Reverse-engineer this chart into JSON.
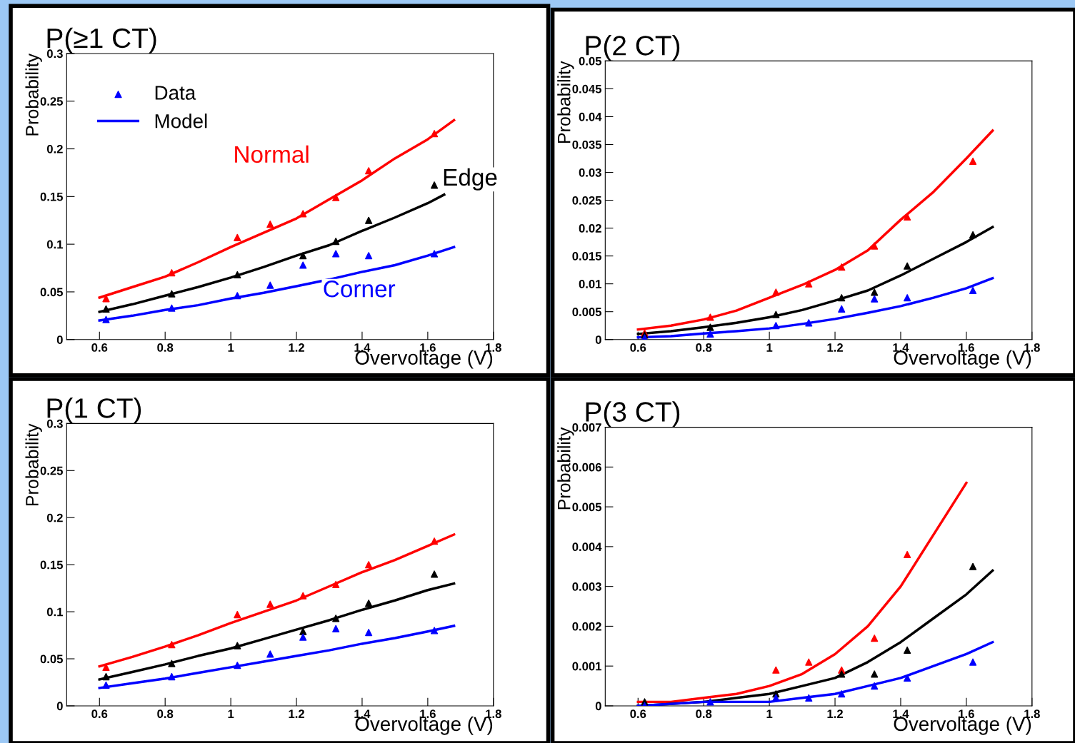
{
  "chart_data": [
    {
      "type": "line",
      "title": "P(≥1 CT)",
      "xlabel": "Overvoltage (V)",
      "ylabel": "Probability",
      "xlim": [
        0.5,
        1.8
      ],
      "xticks": [
        0.6,
        0.8,
        1,
        1.2,
        1.4,
        1.6,
        1.8
      ],
      "ylim": [
        0,
        0.3
      ],
      "yticks": [
        0,
        0.05,
        0.1,
        0.15,
        0.2,
        0.25,
        0.3
      ],
      "grid": false,
      "legend": "top left",
      "annotations": [
        "Normal",
        "Edge",
        "Corner"
      ],
      "series": [
        {
          "name": "Data",
          "type": "scatter",
          "marker": "triangle",
          "color": "#0000ff",
          "x": [
            0.62,
            0.82,
            1.02,
            1.12,
            1.22,
            1.32,
            1.42,
            1.62
          ],
          "values": [
            0.021,
            0.033,
            0.046,
            0.057,
            0.078,
            0.09,
            0.088,
            0.09
          ]
        },
        {
          "name": "Model",
          "type": "line",
          "line_style": "solid",
          "color": "#0000ff",
          "x": [
            0.6,
            0.7,
            0.8,
            0.9,
            1.0,
            1.1,
            1.2,
            1.3,
            1.4,
            1.5,
            1.6,
            1.68
          ],
          "values": [
            0.02,
            0.025,
            0.031,
            0.036,
            0.043,
            0.049,
            0.056,
            0.063,
            0.071,
            0.078,
            0.088,
            0.097
          ]
        },
        {
          "type": "scatter",
          "marker": "triangle",
          "color": "#ff0000",
          "x": [
            0.62,
            0.82,
            1.02,
            1.12,
            1.22,
            1.32,
            1.42,
            1.62
          ],
          "values": [
            0.043,
            0.07,
            0.107,
            0.121,
            0.132,
            0.149,
            0.177,
            0.216
          ]
        },
        {
          "type": "scatter",
          "marker": "triangle",
          "color": "#000000",
          "x": [
            0.62,
            0.82,
            1.02,
            1.12,
            1.22,
            1.32,
            1.42,
            1.62
          ],
          "values": [
            0.032,
            0.048,
            0.068,
            null,
            0.088,
            0.103,
            0.125,
            0.162
          ]
        },
        {
          "type": "line",
          "line_style": "solid",
          "color": "#ff0000",
          "x": [
            0.6,
            0.7,
            0.8,
            0.9,
            1.0,
            1.1,
            1.2,
            1.3,
            1.4,
            1.5,
            1.6,
            1.68
          ],
          "values": [
            0.044,
            0.055,
            0.066,
            0.081,
            0.097,
            0.112,
            0.127,
            0.147,
            0.167,
            0.19,
            0.21,
            0.23
          ]
        },
        {
          "type": "line",
          "line_style": "solid",
          "color": "#000000",
          "x": [
            0.6,
            0.7,
            0.8,
            0.9,
            1.0,
            1.1,
            1.2,
            1.3,
            1.4,
            1.5,
            1.6,
            1.65
          ],
          "values": [
            0.029,
            0.037,
            0.046,
            0.055,
            0.065,
            0.076,
            0.088,
            0.099,
            0.114,
            0.128,
            0.143,
            0.152
          ]
        }
      ]
    },
    {
      "type": "line",
      "title": "P(2 CT)",
      "xlabel": "Overvoltage (V)",
      "ylabel": "Probability",
      "xlim": [
        0.5,
        1.8
      ],
      "xticks": [
        0.6,
        0.8,
        1,
        1.2,
        1.4,
        1.6,
        1.8
      ],
      "ylim": [
        0,
        0.05
      ],
      "yticks": [
        0,
        0.005,
        0.01,
        0.015,
        0.02,
        0.025,
        0.03,
        0.035,
        0.04,
        0.045,
        0.05
      ],
      "grid": false,
      "series": [
        {
          "type": "scatter",
          "marker": "triangle",
          "color": "#ff0000",
          "x": [
            0.62,
            0.82,
            1.02,
            1.12,
            1.22,
            1.32,
            1.42,
            1.62
          ],
          "values": [
            0.0012,
            0.004,
            0.0085,
            0.01,
            0.013,
            0.0168,
            0.022,
            0.032
          ]
        },
        {
          "type": "scatter",
          "marker": "triangle",
          "color": "#000000",
          "x": [
            0.62,
            0.82,
            1.02,
            1.12,
            1.22,
            1.32,
            1.42,
            1.62
          ],
          "values": [
            0.0008,
            0.0022,
            0.0045,
            null,
            0.0075,
            0.0085,
            0.0132,
            0.0188
          ]
        },
        {
          "type": "scatter",
          "marker": "triangle",
          "color": "#0000ff",
          "x": [
            0.62,
            0.82,
            1.02,
            1.12,
            1.22,
            1.32,
            1.42,
            1.62
          ],
          "values": [
            0.0003,
            0.001,
            0.0025,
            0.003,
            0.0055,
            0.0073,
            0.0075,
            0.0088
          ]
        },
        {
          "type": "line",
          "line_style": "solid",
          "color": "#ff0000",
          "x": [
            0.6,
            0.7,
            0.8,
            0.9,
            1.0,
            1.1,
            1.2,
            1.3,
            1.4,
            1.5,
            1.6,
            1.68
          ],
          "values": [
            0.0018,
            0.0025,
            0.0036,
            0.0052,
            0.0075,
            0.0098,
            0.0125,
            0.016,
            0.0215,
            0.0265,
            0.0325,
            0.0375
          ]
        },
        {
          "type": "line",
          "line_style": "solid",
          "color": "#000000",
          "x": [
            0.6,
            0.7,
            0.8,
            0.9,
            1.0,
            1.1,
            1.2,
            1.3,
            1.4,
            1.5,
            1.6,
            1.68
          ],
          "values": [
            0.001,
            0.0015,
            0.0022,
            0.003,
            0.004,
            0.0053,
            0.007,
            0.0088,
            0.0115,
            0.0145,
            0.0175,
            0.0202
          ]
        },
        {
          "type": "line",
          "line_style": "solid",
          "color": "#0000ff",
          "x": [
            0.6,
            0.7,
            0.8,
            0.9,
            1.0,
            1.1,
            1.2,
            1.3,
            1.4,
            1.5,
            1.6,
            1.68
          ],
          "values": [
            0.0004,
            0.0006,
            0.0011,
            0.0015,
            0.002,
            0.0028,
            0.0037,
            0.0048,
            0.006,
            0.0075,
            0.0092,
            0.011
          ]
        }
      ]
    },
    {
      "type": "line",
      "title": "P(1 CT)",
      "xlabel": "Overvoltage (V)",
      "ylabel": "Probability",
      "xlim": [
        0.5,
        1.8
      ],
      "xticks": [
        0.6,
        0.8,
        1,
        1.2,
        1.4,
        1.6,
        1.8
      ],
      "ylim": [
        0,
        0.3
      ],
      "yticks": [
        0,
        0.05,
        0.1,
        0.15,
        0.2,
        0.25,
        0.3
      ],
      "grid": false,
      "series": [
        {
          "type": "scatter",
          "marker": "triangle",
          "color": "#ff0000",
          "x": [
            0.62,
            0.82,
            1.02,
            1.12,
            1.22,
            1.32,
            1.42,
            1.62
          ],
          "values": [
            0.041,
            0.065,
            0.097,
            0.108,
            0.117,
            0.129,
            0.15,
            0.175
          ]
        },
        {
          "type": "scatter",
          "marker": "triangle",
          "color": "#000000",
          "x": [
            0.62,
            0.82,
            1.02,
            1.12,
            1.22,
            1.32,
            1.42,
            1.62
          ],
          "values": [
            0.031,
            0.045,
            0.064,
            null,
            0.079,
            0.093,
            0.109,
            0.14
          ]
        },
        {
          "type": "scatter",
          "marker": "triangle",
          "color": "#0000ff",
          "x": [
            0.62,
            0.82,
            1.02,
            1.12,
            1.22,
            1.32,
            1.42,
            1.62
          ],
          "values": [
            0.022,
            0.031,
            0.043,
            0.055,
            0.073,
            0.082,
            0.078,
            0.08
          ]
        },
        {
          "type": "line",
          "line_style": "solid",
          "color": "#ff0000",
          "x": [
            0.6,
            0.7,
            0.8,
            0.9,
            1.0,
            1.1,
            1.2,
            1.3,
            1.4,
            1.5,
            1.6,
            1.68
          ],
          "values": [
            0.042,
            0.052,
            0.063,
            0.075,
            0.088,
            0.1,
            0.112,
            0.127,
            0.142,
            0.155,
            0.17,
            0.182
          ]
        },
        {
          "type": "line",
          "line_style": "solid",
          "color": "#000000",
          "x": [
            0.6,
            0.7,
            0.8,
            0.9,
            1.0,
            1.1,
            1.2,
            1.3,
            1.4,
            1.5,
            1.6,
            1.68
          ],
          "values": [
            0.028,
            0.036,
            0.044,
            0.053,
            0.061,
            0.071,
            0.081,
            0.091,
            0.102,
            0.112,
            0.123,
            0.13
          ]
        },
        {
          "type": "line",
          "line_style": "solid",
          "color": "#0000ff",
          "x": [
            0.6,
            0.7,
            0.8,
            0.9,
            1.0,
            1.1,
            1.2,
            1.3,
            1.4,
            1.5,
            1.6,
            1.68
          ],
          "values": [
            0.019,
            0.024,
            0.029,
            0.035,
            0.041,
            0.047,
            0.053,
            0.059,
            0.066,
            0.072,
            0.079,
            0.085
          ]
        }
      ]
    },
    {
      "type": "line",
      "title": "P(3 CT)",
      "xlabel": "Overvoltage (V)",
      "ylabel": "Probability",
      "xlim": [
        0.5,
        1.8
      ],
      "xticks": [
        0.6,
        0.8,
        1,
        1.2,
        1.4,
        1.6,
        1.8
      ],
      "ylim": [
        0,
        0.007
      ],
      "yticks": [
        0,
        0.001,
        0.002,
        0.003,
        0.004,
        0.005,
        0.006,
        0.007
      ],
      "grid": false,
      "series": [
        {
          "type": "scatter",
          "marker": "triangle",
          "color": "#ff0000",
          "x": [
            1.02,
            1.12,
            1.22,
            1.32,
            1.42
          ],
          "values": [
            0.0009,
            0.0011,
            0.0009,
            0.0017,
            0.0038
          ]
        },
        {
          "type": "scatter",
          "marker": "triangle",
          "color": "#000000",
          "x": [
            0.62,
            0.82,
            1.02,
            1.22,
            1.32,
            1.42,
            1.62
          ],
          "values": [
            0.0001,
            null,
            0.0003,
            0.0008,
            0.0008,
            0.0014,
            0.0035
          ]
        },
        {
          "type": "scatter",
          "marker": "triangle",
          "color": "#0000ff",
          "x": [
            0.62,
            0.82,
            1.02,
            1.12,
            1.22,
            1.32,
            1.42,
            1.62
          ],
          "values": [
            0,
            0.0001,
            0.0002,
            0.0002,
            0.0003,
            0.0005,
            0.0007,
            0.0011
          ]
        },
        {
          "type": "line",
          "line_style": "solid",
          "color": "#ff0000",
          "x": [
            0.6,
            0.7,
            0.8,
            0.9,
            1.0,
            1.1,
            1.2,
            1.3,
            1.4,
            1.5,
            1.6
          ],
          "values": [
            0.0001,
            0.0001,
            0.0002,
            0.0003,
            0.0005,
            0.0008,
            0.0013,
            0.002,
            0.003,
            0.0043,
            0.0056
          ]
        },
        {
          "type": "line",
          "line_style": "solid",
          "color": "#000000",
          "x": [
            0.6,
            0.8,
            0.9,
            1.0,
            1.1,
            1.2,
            1.3,
            1.4,
            1.5,
            1.6,
            1.68
          ],
          "values": [
            0,
            0.0001,
            0.0002,
            0.0003,
            0.0005,
            0.0007,
            0.0011,
            0.0016,
            0.0022,
            0.0028,
            0.0034
          ]
        },
        {
          "type": "line",
          "line_style": "solid",
          "color": "#0000ff",
          "x": [
            0.6,
            0.8,
            0.9,
            1.0,
            1.1,
            1.2,
            1.3,
            1.4,
            1.5,
            1.6,
            1.68
          ],
          "values": [
            0,
            0.0001,
            0.0001,
            0.0001,
            0.0002,
            0.0003,
            0.0005,
            0.0007,
            0.001,
            0.0013,
            0.0016
          ]
        }
      ]
    }
  ]
}
